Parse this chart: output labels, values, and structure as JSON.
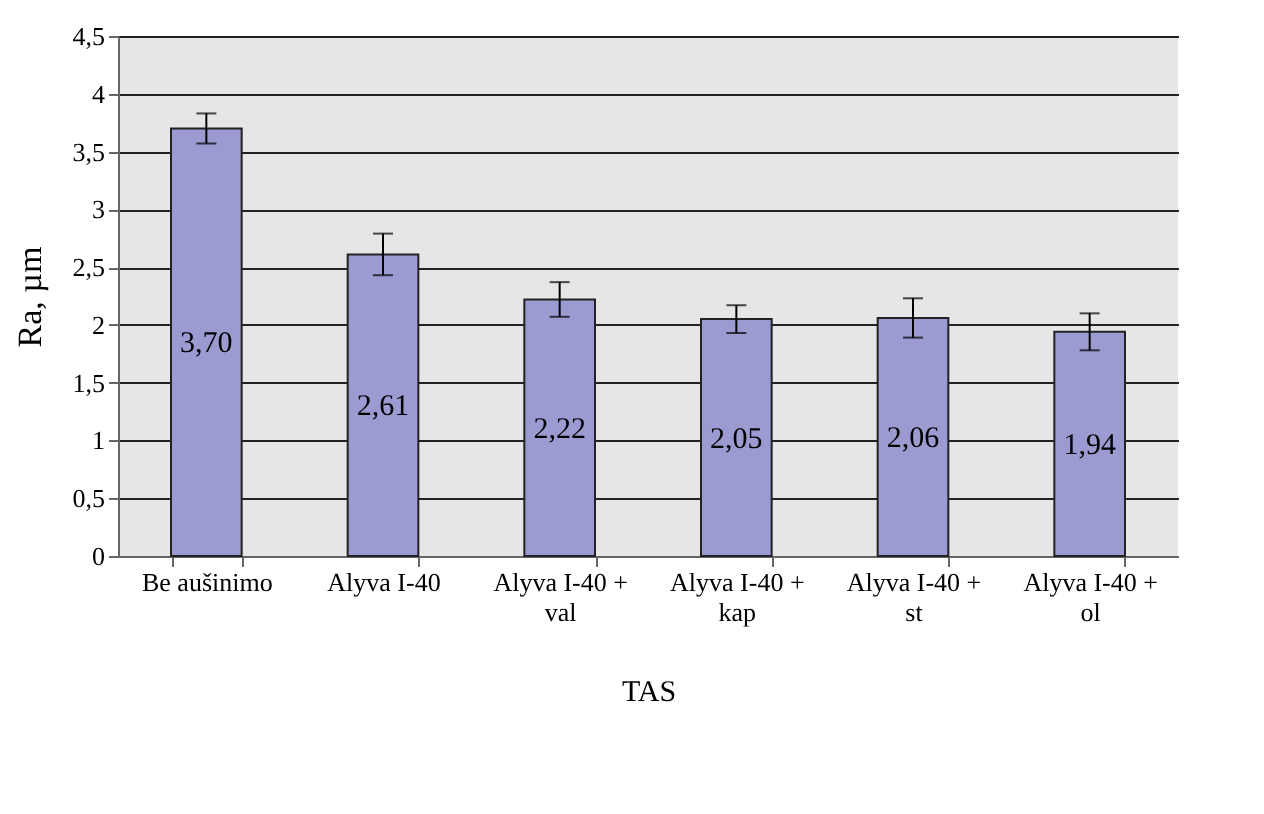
{
  "chart_data": {
    "type": "bar",
    "xlabel": "TAS",
    "ylabel": "Ra, µm",
    "categories": [
      "Be aušinimo",
      "Alyva I-40",
      "Alyva I-40 + val",
      "Alyva I-40 + kap",
      "Alyva I-40 + st",
      "Alyva I-40 + ol"
    ],
    "values": [
      3.7,
      2.61,
      2.22,
      2.05,
      2.06,
      1.94
    ],
    "value_labels": [
      "3,70",
      "2,61",
      "2,22",
      "2,05",
      "2,06",
      "1,94"
    ],
    "errors": [
      0.13,
      0.18,
      0.15,
      0.12,
      0.17,
      0.16
    ],
    "color": "#9b9bd2",
    "ylim": [
      0,
      4.5
    ],
    "yticks": [
      {
        "value": 0,
        "label": "0"
      },
      {
        "value": 0.5,
        "label": "0,5"
      },
      {
        "value": 1,
        "label": "1"
      },
      {
        "value": 1.5,
        "label": "1,5"
      },
      {
        "value": 2,
        "label": "2"
      },
      {
        "value": 2.5,
        "label": "2,5"
      },
      {
        "value": 3,
        "label": "3"
      },
      {
        "value": 3.5,
        "label": "3,5"
      },
      {
        "value": 4,
        "label": "4"
      },
      {
        "value": 4.5,
        "label": "4,5"
      }
    ],
    "grid": "y"
  }
}
